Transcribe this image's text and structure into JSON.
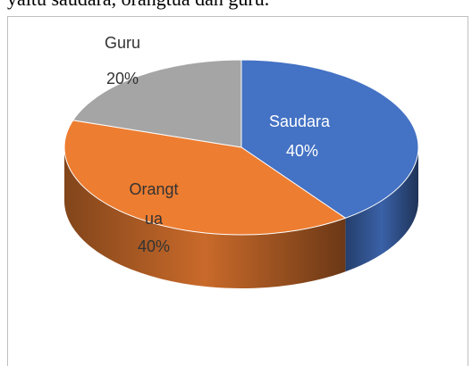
{
  "top_text": "yaitu saudara, orangtua dan guru.",
  "chart_data": {
    "type": "pie",
    "categories": [
      "Saudara",
      "Orangtua",
      "Guru"
    ],
    "values": [
      40,
      40,
      20
    ],
    "value_labels": [
      "40%",
      "40%",
      "20%"
    ],
    "colors": [
      "#4472c4",
      "#ed7d31",
      "#a5a5a5"
    ]
  }
}
